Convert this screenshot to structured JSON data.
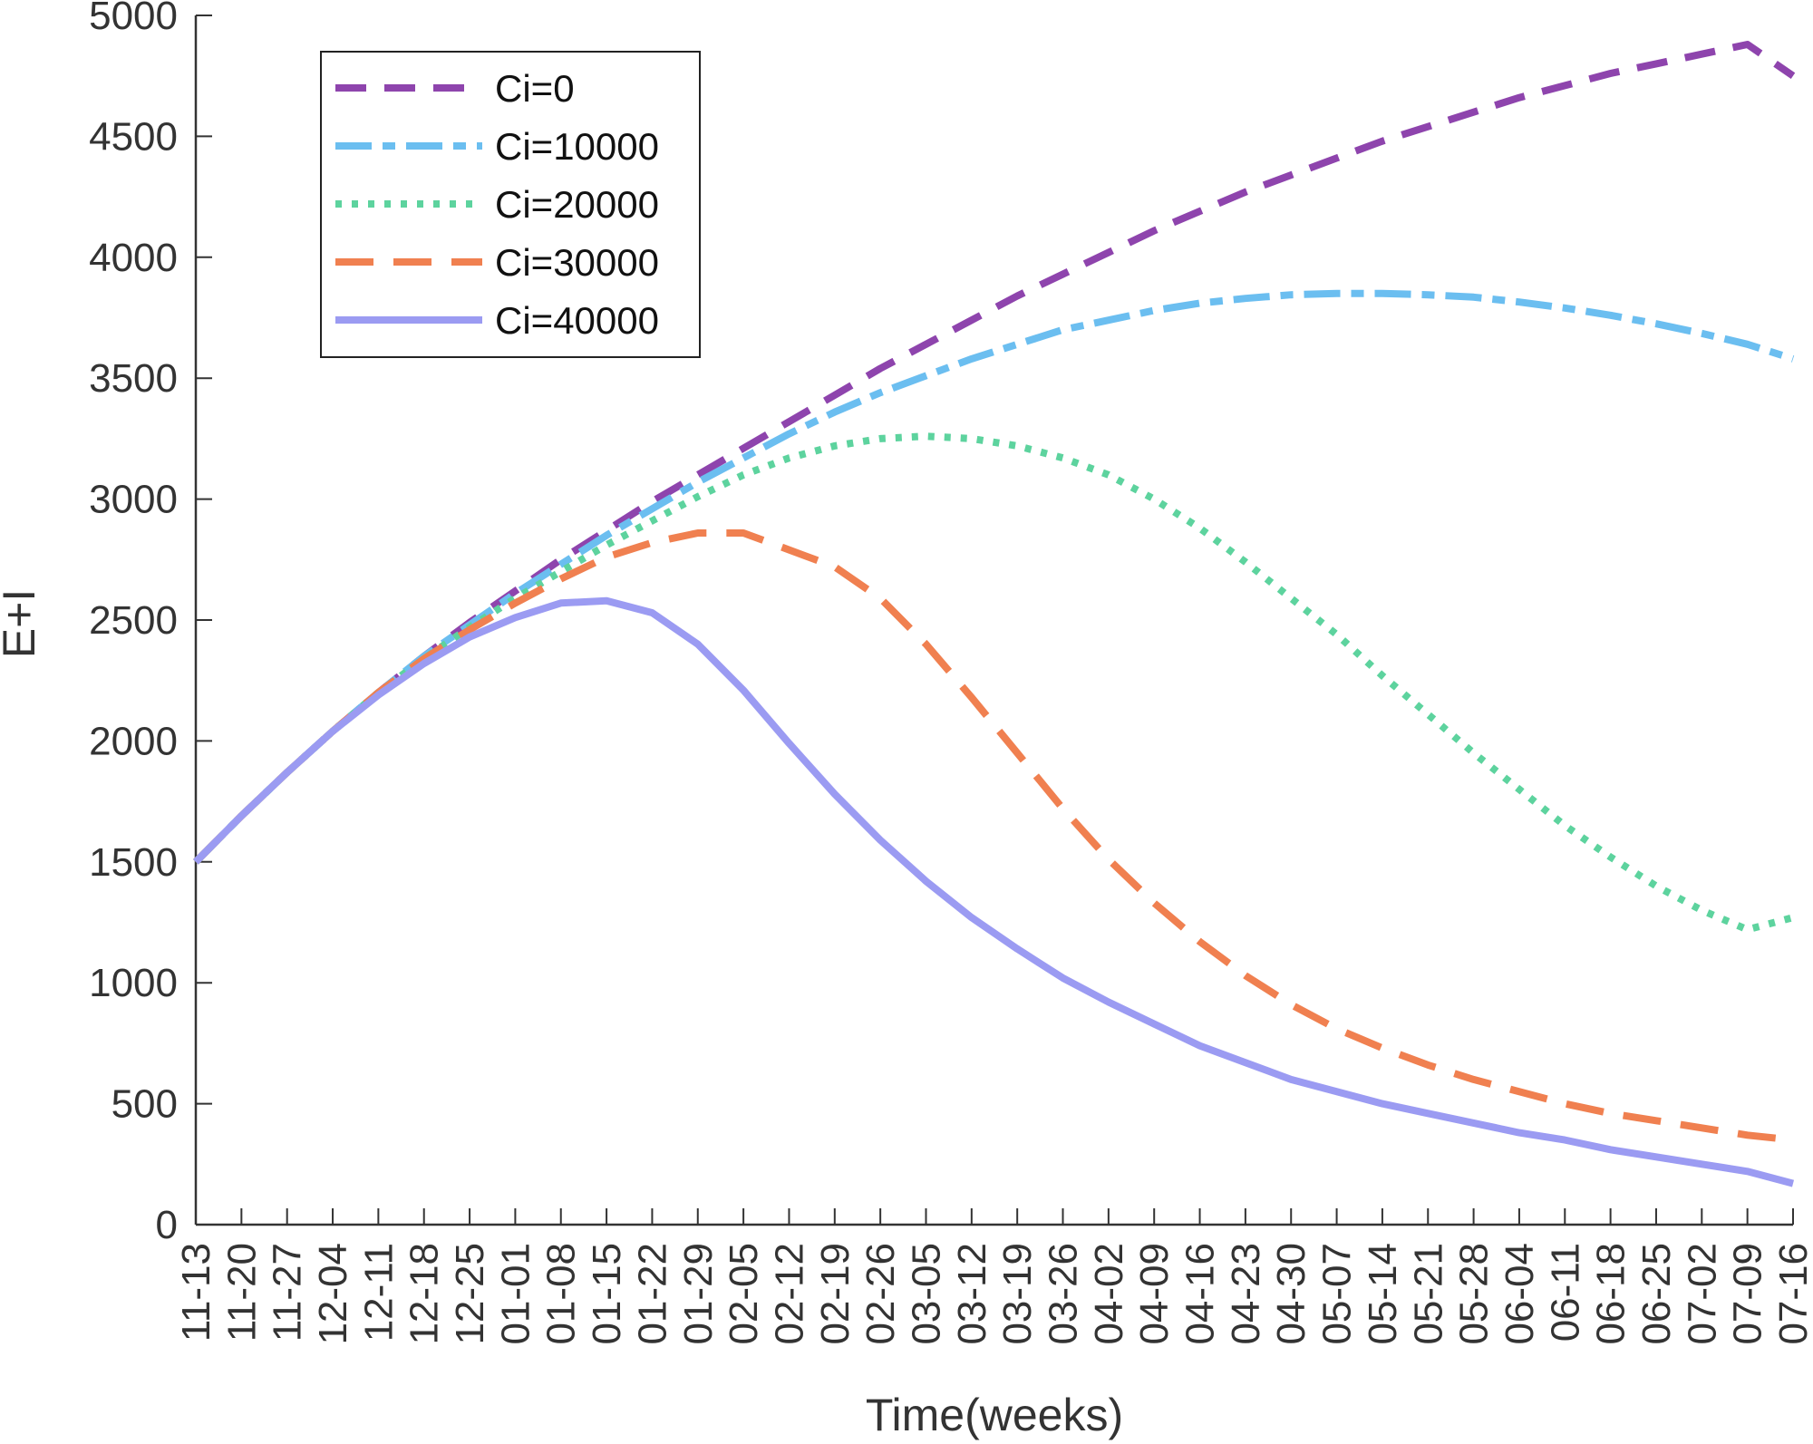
{
  "chart_data": {
    "type": "line",
    "xlabel": "Time(weeks)",
    "ylabel": "E+I",
    "ylim": [
      0,
      5000
    ],
    "yticks": [
      0,
      500,
      1000,
      1500,
      2000,
      2500,
      3000,
      3500,
      4000,
      4500,
      5000
    ],
    "categories": [
      "11-13",
      "11-20",
      "11-27",
      "12-04",
      "12-11",
      "12-18",
      "12-25",
      "01-01",
      "01-08",
      "01-15",
      "01-22",
      "01-29",
      "02-05",
      "02-12",
      "02-19",
      "02-26",
      "03-05",
      "03-12",
      "03-19",
      "03-26",
      "04-02",
      "04-09",
      "04-16",
      "04-23",
      "04-30",
      "05-07",
      "05-14",
      "05-21",
      "05-28",
      "06-04",
      "06-11",
      "06-18",
      "06-25",
      "07-02",
      "07-09",
      "07-16"
    ],
    "legend_position": "top-left",
    "series": [
      {
        "name": "Ci=0",
        "color": "#8e44ad",
        "dash": "dash",
        "values": [
          1500,
          1690,
          1870,
          2040,
          2200,
          2350,
          2490,
          2620,
          2750,
          2870,
          2990,
          3100,
          3210,
          3320,
          3430,
          3540,
          3640,
          3740,
          3840,
          3930,
          4020,
          4110,
          4190,
          4270,
          4340,
          4410,
          4480,
          4540,
          4600,
          4660,
          4710,
          4760,
          4800,
          4840,
          4880,
          4750
        ]
      },
      {
        "name": "Ci=10000",
        "color": "#6bbef0",
        "dash": "dashdot",
        "values": [
          1500,
          1690,
          1870,
          2040,
          2200,
          2350,
          2480,
          2610,
          2730,
          2850,
          2960,
          3070,
          3170,
          3270,
          3360,
          3440,
          3510,
          3580,
          3640,
          3700,
          3740,
          3780,
          3810,
          3830,
          3845,
          3850,
          3850,
          3845,
          3835,
          3815,
          3790,
          3760,
          3725,
          3685,
          3640,
          3580
        ]
      },
      {
        "name": "Ci=20000",
        "color": "#5dd39e",
        "dash": "dot",
        "values": [
          1500,
          1690,
          1870,
          2040,
          2200,
          2340,
          2470,
          2590,
          2700,
          2810,
          2910,
          3010,
          3100,
          3170,
          3220,
          3250,
          3260,
          3250,
          3220,
          3170,
          3100,
          3000,
          2880,
          2740,
          2590,
          2440,
          2270,
          2110,
          1950,
          1800,
          1650,
          1520,
          1400,
          1300,
          1220,
          1270
        ]
      },
      {
        "name": "Ci=30000",
        "color": "#f08050",
        "dash": "longdash",
        "values": [
          1500,
          1690,
          1870,
          2040,
          2200,
          2340,
          2460,
          2570,
          2670,
          2760,
          2820,
          2860,
          2860,
          2790,
          2720,
          2590,
          2400,
          2180,
          1950,
          1720,
          1510,
          1330,
          1170,
          1030,
          910,
          810,
          730,
          660,
          600,
          550,
          500,
          460,
          430,
          400,
          370,
          350
        ]
      },
      {
        "name": "Ci=40000",
        "color": "#9b9bf2",
        "dash": "solid",
        "values": [
          1500,
          1690,
          1870,
          2040,
          2190,
          2320,
          2430,
          2510,
          2570,
          2580,
          2530,
          2400,
          2210,
          1990,
          1780,
          1590,
          1420,
          1270,
          1140,
          1020,
          920,
          830,
          740,
          670,
          600,
          550,
          500,
          460,
          420,
          380,
          350,
          310,
          280,
          250,
          220,
          170
        ]
      }
    ]
  }
}
